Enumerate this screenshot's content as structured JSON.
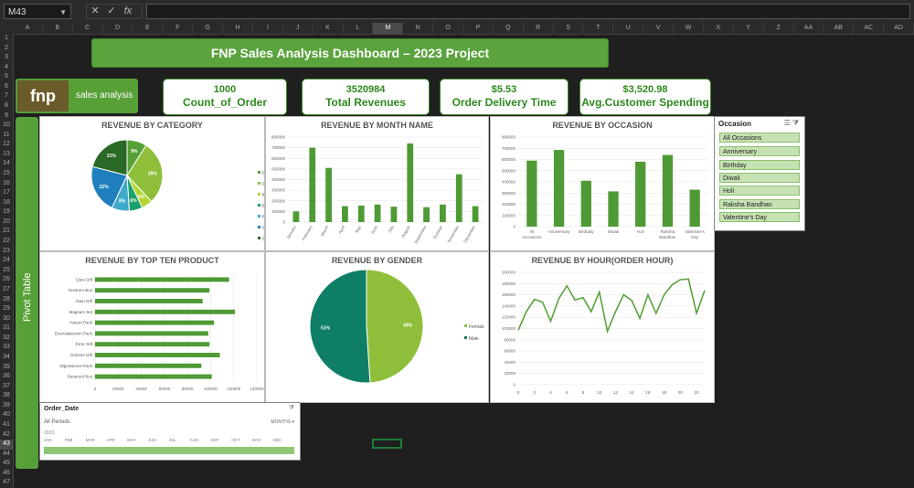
{
  "excel": {
    "name_box": "M43",
    "fx_icons": [
      "close-icon",
      "check-icon",
      "function-icon"
    ],
    "columns": [
      "A",
      "B",
      "C",
      "D",
      "E",
      "F",
      "G",
      "H",
      "I",
      "J",
      "K",
      "L",
      "M",
      "N",
      "O",
      "P",
      "Q",
      "R",
      "S",
      "T",
      "U",
      "V",
      "W",
      "X",
      "Y",
      "Z",
      "AA",
      "AB",
      "AC",
      "AD"
    ],
    "rows": [
      "1",
      "2",
      "3",
      "4",
      "5",
      "6",
      "7",
      "8",
      "9",
      "10",
      "11",
      "12",
      "13",
      "14",
      "15",
      "16",
      "17",
      "18",
      "19",
      "20",
      "21",
      "22",
      "23",
      "24",
      "25",
      "26",
      "27",
      "28",
      "29",
      "30",
      "31",
      "32",
      "33",
      "34",
      "35",
      "36",
      "37",
      "38",
      "39",
      "40",
      "41",
      "42",
      "43",
      "44",
      "45",
      "46",
      "47"
    ]
  },
  "dashboard": {
    "title": "FNP Sales Analysis Dashboard – 2023 Project",
    "logo_text": "fnp",
    "logo_label": "sales analysis",
    "pivot_label": "Pivot Table",
    "kpis": [
      {
        "value": "1000",
        "label": "Count_of_Order"
      },
      {
        "value": "3520984",
        "label": "Total Revenues"
      },
      {
        "value": "$5.53",
        "label": "Order Delivery Time"
      },
      {
        "value": "$3,520.98",
        "label": "Avg.Customer Spending"
      }
    ],
    "colors": {
      "green": "#5aa33d",
      "dark_green": "#2f8a1f"
    }
  },
  "chart_data": [
    {
      "type": "pie",
      "title": "REVENUE BY CATEGORY",
      "categories": [
        "Cake",
        "Colors",
        "Mugs",
        "Plants",
        "Raksha Bandhan",
        "Soft Toys",
        "Sweets"
      ],
      "values": [
        9,
        29,
        5,
        6,
        8,
        22,
        21
      ],
      "labels": [
        "9%",
        "29%",
        "5%",
        "6%",
        "8%",
        "22%",
        "21%"
      ],
      "colors": [
        "#57a037",
        "#8fbf3a",
        "#b4d433",
        "#1a9f6d",
        "#3fa9c9",
        "#1f7fbd",
        "#2a6a26"
      ]
    },
    {
      "type": "bar",
      "title": "REVENUE BY MONTH NAME",
      "categories": [
        "January",
        "February",
        "March",
        "April",
        "May",
        "June",
        "July",
        "August",
        "September",
        "October",
        "November",
        "December"
      ],
      "values": [
        100000,
        700000,
        510000,
        150000,
        155000,
        165000,
        145000,
        740000,
        140000,
        165000,
        450000,
        150000
      ],
      "ylim": [
        0,
        800000
      ],
      "yticks": [
        "0",
        "100000",
        "200000",
        "300000",
        "400000",
        "500000",
        "600000",
        "700000",
        "800000"
      ]
    },
    {
      "type": "bar",
      "title": "REVENUE BY OCCASION",
      "categories": [
        "All Occasions",
        "Anniversary",
        "Birthday",
        "Diwali",
        "Holi",
        "Raksha Bandhan",
        "Valentine's Day"
      ],
      "values": [
        590000,
        685000,
        410000,
        315000,
        580000,
        640000,
        330000
      ],
      "ylim": [
        0,
        800000
      ],
      "yticks": [
        "0",
        "100000",
        "200000",
        "300000",
        "400000",
        "500000",
        "600000",
        "700000",
        "800000"
      ]
    },
    {
      "type": "bar",
      "orientation": "horizontal",
      "title": "REVENUE BY TOP TEN PRODUCT",
      "categories": [
        "Quia Gift",
        "Nostrum Box",
        "Nam Gift",
        "Magnam Set",
        "Harum Pack",
        "Exercitationem Pack",
        "Error Gift",
        "Dolores Gift",
        "Dignissimos Pack",
        "Deserunt Box"
      ],
      "values": [
        116000,
        99000,
        93000,
        121000,
        103000,
        98000,
        99000,
        108000,
        92000,
        101000
      ],
      "xlim": [
        0,
        140000
      ],
      "xticks": [
        "0",
        "20000",
        "40000",
        "60000",
        "80000",
        "100000",
        "120000",
        "140000"
      ]
    },
    {
      "type": "pie",
      "title": "REVENUE BY GENDER",
      "categories": [
        "Female",
        "Male"
      ],
      "values": [
        49,
        51
      ],
      "labels": [
        "49%",
        "51%"
      ],
      "colors": [
        "#8fbf3a",
        "#0e7e67"
      ]
    },
    {
      "type": "line",
      "title": "REVENUE BY HOUR(ORDER HOUR)",
      "x": [
        0,
        1,
        2,
        3,
        4,
        5,
        6,
        7,
        8,
        9,
        10,
        11,
        12,
        13,
        14,
        15,
        16,
        17,
        18,
        19,
        20,
        21,
        22,
        23
      ],
      "values": [
        97000,
        130000,
        152000,
        147000,
        113000,
        153000,
        176000,
        151000,
        155000,
        130000,
        165000,
        95000,
        130000,
        160000,
        150000,
        118000,
        160000,
        127000,
        160000,
        178000,
        187000,
        188000,
        127000,
        168000
      ],
      "ylim": [
        0,
        200000
      ],
      "yticks": [
        "0",
        "20000",
        "40000",
        "60000",
        "80000",
        "100000",
        "120000",
        "140000",
        "160000",
        "180000",
        "200000"
      ],
      "xticks": [
        "0",
        "2",
        "4",
        "6",
        "8",
        "10",
        "12",
        "14",
        "16",
        "18",
        "20",
        "22"
      ]
    }
  ],
  "slicer": {
    "title": "Occasion",
    "items": [
      "All Occasions",
      "Anniversary",
      "Birthday",
      "Diwali",
      "Holi",
      "Raksha Bandhan",
      "Valentine's Day"
    ]
  },
  "timeline": {
    "title": "Order_Date",
    "period": "All Periods",
    "level": "MONTHS",
    "year": "2023",
    "months": [
      "JAN",
      "FEB",
      "MAR",
      "APR",
      "MAY",
      "JUN",
      "JUL",
      "AUG",
      "SEP",
      "OCT",
      "NOV",
      "DEC"
    ]
  }
}
